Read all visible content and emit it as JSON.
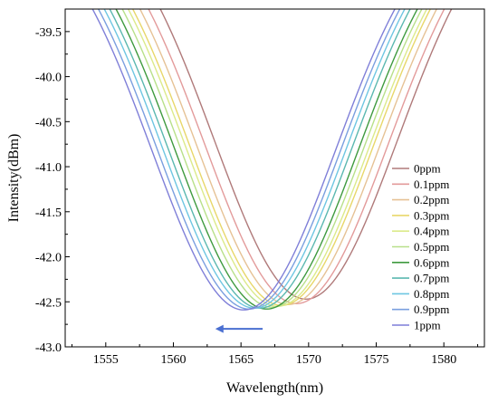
{
  "chart_data": {
    "type": "line",
    "xlabel": "Wavelength(nm)",
    "ylabel": "Intensity(dBm)",
    "xlim": [
      1552.0,
      1583.0
    ],
    "ylim": [
      -43.0,
      -39.25
    ],
    "xticks": [
      1555,
      1560,
      1565,
      1570,
      1575,
      1580
    ],
    "yticks": [
      -43.0,
      -42.5,
      -42.0,
      -41.5,
      -41.0,
      -40.5,
      -40.0,
      -39.5
    ],
    "xtick_labels": [
      "1555",
      "1560",
      "1565",
      "1570",
      "1575",
      "1580"
    ],
    "ytick_labels": [
      "-43.0",
      "-42.5",
      "-42.0",
      "-41.5",
      "-41.0",
      "-40.5",
      "-40.0",
      "-39.5"
    ],
    "grid": false,
    "legend_position": "right",
    "annotations": [
      {
        "type": "arrow",
        "direction": "left",
        "color": "#4a6fd1",
        "from": [
          1566.6,
          -42.8
        ],
        "to": [
          1563.1,
          -42.8
        ]
      }
    ],
    "series": [
      {
        "name": "0ppm",
        "color": "#b07a7a",
        "min_x": 1569.8,
        "min_y": -42.47,
        "curve_width": 9.6
      },
      {
        "name": "0.1ppm",
        "color": "#e39b9b",
        "min_x": 1569.1,
        "min_y": -42.52,
        "curve_width": 9.6
      },
      {
        "name": "0.2ppm",
        "color": "#e6c295",
        "min_x": 1568.5,
        "min_y": -42.53,
        "curve_width": 9.6
      },
      {
        "name": "0.3ppm",
        "color": "#e8d76a",
        "min_x": 1568.0,
        "min_y": -42.54,
        "curve_width": 9.6
      },
      {
        "name": "0.4ppm",
        "color": "#dcea8a",
        "min_x": 1567.7,
        "min_y": -42.55,
        "curve_width": 9.6
      },
      {
        "name": "0.5ppm",
        "color": "#b8e08a",
        "min_x": 1567.3,
        "min_y": -42.56,
        "curve_width": 9.6
      },
      {
        "name": "0.6ppm",
        "color": "#3f9a3f",
        "min_x": 1566.9,
        "min_y": -42.58,
        "curve_width": 9.6
      },
      {
        "name": "0.7ppm",
        "color": "#5bb8b0",
        "min_x": 1566.4,
        "min_y": -42.57,
        "curve_width": 9.6
      },
      {
        "name": "0.8ppm",
        "color": "#6ec6e2",
        "min_x": 1566.0,
        "min_y": -42.57,
        "curve_width": 9.6
      },
      {
        "name": "0.9ppm",
        "color": "#7a9fdf",
        "min_x": 1565.6,
        "min_y": -42.58,
        "curve_width": 9.6
      },
      {
        "name": "1ppm",
        "color": "#7f7fd8",
        "min_x": 1565.2,
        "min_y": -42.59,
        "curve_width": 9.6
      }
    ]
  }
}
